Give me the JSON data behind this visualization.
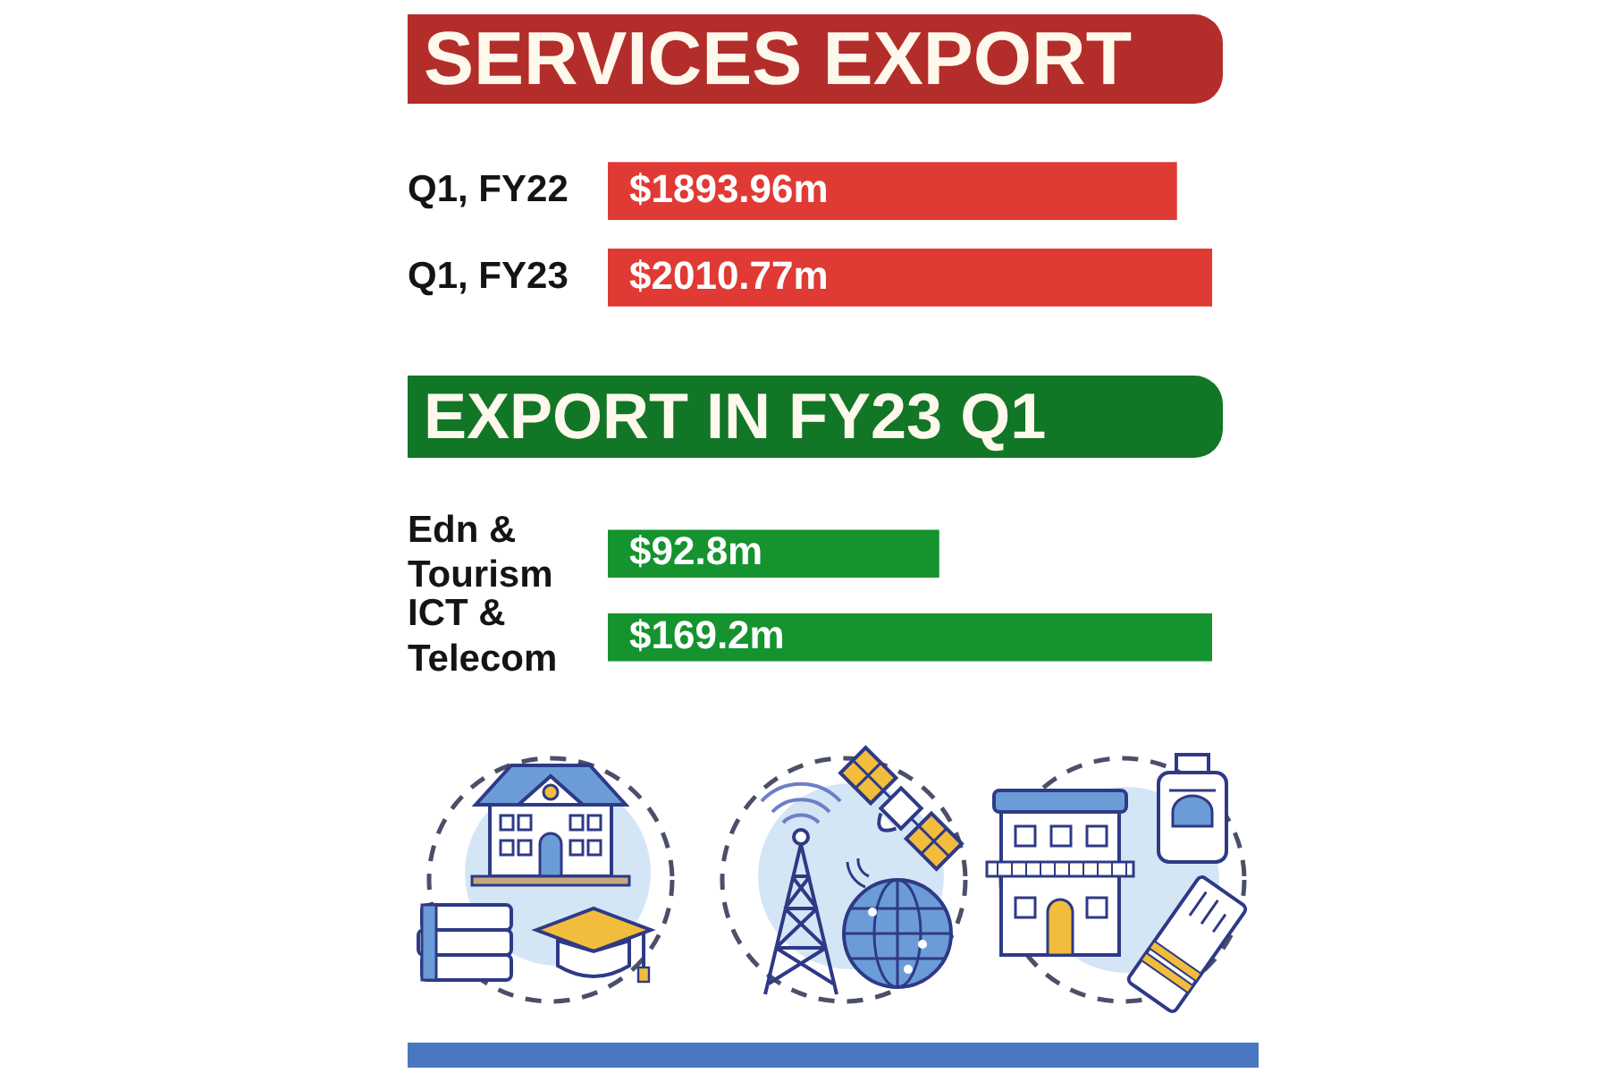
{
  "chart_data": [
    {
      "type": "bar",
      "orientation": "horizontal",
      "title": "SERVICES EXPORT",
      "categories": [
        "Q1, FY22",
        "Q1, FY23"
      ],
      "values": [
        1893.96,
        2010.77
      ],
      "value_labels": [
        "$1893.96m",
        "$2010.77m"
      ],
      "color": "#e03a35",
      "tick_labels": "y"
    },
    {
      "type": "bar",
      "orientation": "horizontal",
      "title": "EXPORT IN FY23 Q1",
      "categories": [
        "Edn & Tourism",
        "ICT & Telecom"
      ],
      "values": [
        92.8,
        169.2
      ],
      "value_labels": [
        "$92.8m",
        "$169.2m"
      ],
      "color": "#15932f",
      "tick_labels": "y"
    }
  ]
}
